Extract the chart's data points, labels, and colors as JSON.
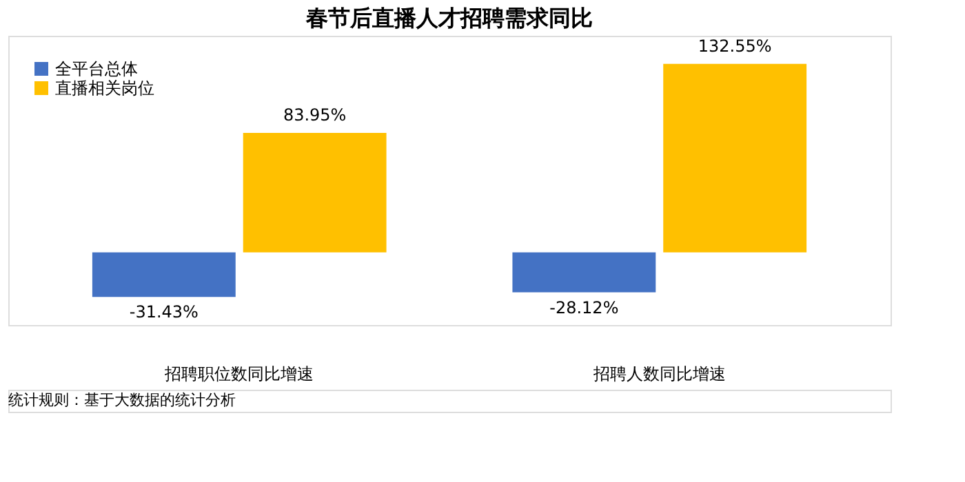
{
  "chart_data": {
    "type": "bar",
    "title": "春节后直播人才招聘需求同比",
    "categories": [
      "招聘职位数同比增速",
      "招聘人数同比增速"
    ],
    "series": [
      {
        "name": "全平台总体",
        "color": "#4472c4",
        "values": [
          -31.43,
          -28.12
        ],
        "value_labels": [
          "-31.43%",
          "-28.12%"
        ]
      },
      {
        "name": "直播相关岗位",
        "color": "#ffc000",
        "values": [
          83.95,
          132.55
        ],
        "value_labels": [
          "83.95%",
          "132.55%"
        ]
      }
    ],
    "legend": "top left",
    "annotations": [
      "统计规则：基于大数据的统计分析"
    ]
  }
}
